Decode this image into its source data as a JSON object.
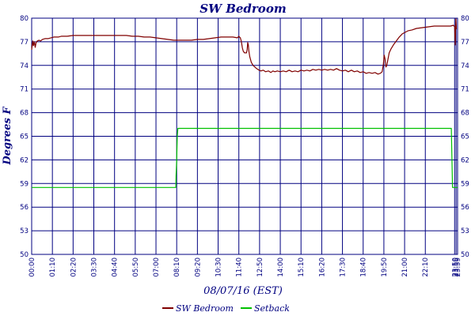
{
  "chart_data": {
    "type": "line",
    "title": "SW Bedroom",
    "xlabel": "08/07/16 (EST)",
    "ylabel": "Degrees F",
    "x_unit": "minutes since 00:00",
    "x_range": [
      0,
      1439
    ],
    "ylim": [
      50,
      80
    ],
    "y_ticks": [
      50,
      53,
      56,
      59,
      62,
      65,
      68,
      71,
      74,
      77,
      80
    ],
    "x_ticks": [
      {
        "t": 0,
        "label": "00:00"
      },
      {
        "t": 70,
        "label": "01:10"
      },
      {
        "t": 140,
        "label": "02:20"
      },
      {
        "t": 210,
        "label": "03:30"
      },
      {
        "t": 280,
        "label": "04:40"
      },
      {
        "t": 350,
        "label": "05:50"
      },
      {
        "t": 420,
        "label": "07:00"
      },
      {
        "t": 490,
        "label": "08:10"
      },
      {
        "t": 560,
        "label": "09:20"
      },
      {
        "t": 630,
        "label": "10:30"
      },
      {
        "t": 700,
        "label": "11:40"
      },
      {
        "t": 770,
        "label": "12:50"
      },
      {
        "t": 840,
        "label": "14:00"
      },
      {
        "t": 910,
        "label": "15:10"
      },
      {
        "t": 980,
        "label": "16:20"
      },
      {
        "t": 1050,
        "label": "17:30"
      },
      {
        "t": 1120,
        "label": "18:40"
      },
      {
        "t": 1190,
        "label": "19:50"
      },
      {
        "t": 1260,
        "label": "21:00"
      },
      {
        "t": 1330,
        "label": "22:10"
      },
      {
        "t": 1429,
        "label": "23:50"
      },
      {
        "t": 1434,
        "label": "23:55"
      },
      {
        "t": 1439,
        "label": "23:59"
      }
    ],
    "grid": true,
    "legend_position": "bottom-center",
    "series": [
      {
        "name": "SW Bedroom",
        "color": "#800000",
        "points": [
          [
            0,
            76.0
          ],
          [
            2,
            76.6
          ],
          [
            4,
            77.1
          ],
          [
            6,
            76.5
          ],
          [
            9,
            77.0
          ],
          [
            12,
            76.3
          ],
          [
            15,
            76.9
          ],
          [
            19,
            77.1
          ],
          [
            25,
            77.2
          ],
          [
            30,
            77.1
          ],
          [
            36,
            77.3
          ],
          [
            45,
            77.4
          ],
          [
            55,
            77.4
          ],
          [
            65,
            77.5
          ],
          [
            75,
            77.6
          ],
          [
            90,
            77.6
          ],
          [
            100,
            77.7
          ],
          [
            120,
            77.7
          ],
          [
            140,
            77.8
          ],
          [
            160,
            77.8
          ],
          [
            180,
            77.8
          ],
          [
            200,
            77.8
          ],
          [
            220,
            77.8
          ],
          [
            240,
            77.8
          ],
          [
            260,
            77.8
          ],
          [
            280,
            77.8
          ],
          [
            300,
            77.8
          ],
          [
            320,
            77.8
          ],
          [
            340,
            77.7
          ],
          [
            360,
            77.7
          ],
          [
            380,
            77.6
          ],
          [
            400,
            77.6
          ],
          [
            420,
            77.5
          ],
          [
            440,
            77.4
          ],
          [
            460,
            77.3
          ],
          [
            480,
            77.2
          ],
          [
            500,
            77.2
          ],
          [
            520,
            77.2
          ],
          [
            540,
            77.2
          ],
          [
            560,
            77.3
          ],
          [
            580,
            77.3
          ],
          [
            600,
            77.4
          ],
          [
            620,
            77.5
          ],
          [
            640,
            77.6
          ],
          [
            660,
            77.6
          ],
          [
            680,
            77.6
          ],
          [
            695,
            77.5
          ],
          [
            700,
            77.7
          ],
          [
            705,
            77.5
          ],
          [
            708,
            77.1
          ],
          [
            710,
            76.7
          ],
          [
            712,
            76.2
          ],
          [
            715,
            75.8
          ],
          [
            719,
            75.6
          ],
          [
            723,
            75.6
          ],
          [
            726,
            75.6
          ],
          [
            728,
            76.0
          ],
          [
            730,
            76.9
          ],
          [
            732,
            76.6
          ],
          [
            734,
            75.8
          ],
          [
            737,
            75.1
          ],
          [
            742,
            74.4
          ],
          [
            748,
            74.0
          ],
          [
            754,
            73.8
          ],
          [
            760,
            73.6
          ],
          [
            768,
            73.4
          ],
          [
            775,
            73.3
          ],
          [
            782,
            73.4
          ],
          [
            790,
            73.2
          ],
          [
            800,
            73.3
          ],
          [
            808,
            73.1
          ],
          [
            815,
            73.3
          ],
          [
            822,
            73.2
          ],
          [
            830,
            73.3
          ],
          [
            840,
            73.2
          ],
          [
            850,
            73.3
          ],
          [
            860,
            73.2
          ],
          [
            870,
            73.4
          ],
          [
            880,
            73.2
          ],
          [
            890,
            73.3
          ],
          [
            900,
            73.2
          ],
          [
            910,
            73.4
          ],
          [
            920,
            73.3
          ],
          [
            930,
            73.4
          ],
          [
            940,
            73.3
          ],
          [
            950,
            73.5
          ],
          [
            960,
            73.4
          ],
          [
            970,
            73.5
          ],
          [
            980,
            73.4
          ],
          [
            990,
            73.5
          ],
          [
            1000,
            73.4
          ],
          [
            1010,
            73.5
          ],
          [
            1020,
            73.4
          ],
          [
            1030,
            73.6
          ],
          [
            1040,
            73.4
          ],
          [
            1050,
            73.3
          ],
          [
            1060,
            73.4
          ],
          [
            1070,
            73.2
          ],
          [
            1080,
            73.4
          ],
          [
            1090,
            73.2
          ],
          [
            1100,
            73.3
          ],
          [
            1110,
            73.1
          ],
          [
            1120,
            73.2
          ],
          [
            1130,
            73.0
          ],
          [
            1140,
            73.1
          ],
          [
            1150,
            73.0
          ],
          [
            1160,
            73.1
          ],
          [
            1170,
            72.9
          ],
          [
            1178,
            73.0
          ],
          [
            1184,
            73.2
          ],
          [
            1188,
            74.1
          ],
          [
            1191,
            75.3
          ],
          [
            1194,
            74.8
          ],
          [
            1197,
            73.8
          ],
          [
            1200,
            74.0
          ],
          [
            1204,
            74.8
          ],
          [
            1208,
            75.6
          ],
          [
            1214,
            76.1
          ],
          [
            1222,
            76.6
          ],
          [
            1232,
            77.1
          ],
          [
            1242,
            77.6
          ],
          [
            1252,
            78.0
          ],
          [
            1262,
            78.2
          ],
          [
            1272,
            78.4
          ],
          [
            1285,
            78.5
          ],
          [
            1300,
            78.7
          ],
          [
            1320,
            78.8
          ],
          [
            1340,
            78.9
          ],
          [
            1360,
            79.0
          ],
          [
            1380,
            79.0
          ],
          [
            1400,
            79.0
          ],
          [
            1415,
            79.0
          ],
          [
            1425,
            79.1
          ],
          [
            1429,
            78.9
          ],
          [
            1431,
            76.6
          ],
          [
            1433,
            79.9
          ],
          [
            1435,
            78.6
          ]
        ]
      },
      {
        "name": "Setback",
        "color": "#00c000",
        "points": [
          [
            0,
            58.5
          ],
          [
            487,
            58.5
          ],
          [
            488,
            60.0
          ],
          [
            490,
            62.0
          ],
          [
            492,
            65.0
          ],
          [
            494,
            66.0
          ],
          [
            1418,
            66.0
          ],
          [
            1420,
            62.0
          ],
          [
            1422,
            58.5
          ],
          [
            1439,
            58.5
          ]
        ]
      }
    ]
  }
}
